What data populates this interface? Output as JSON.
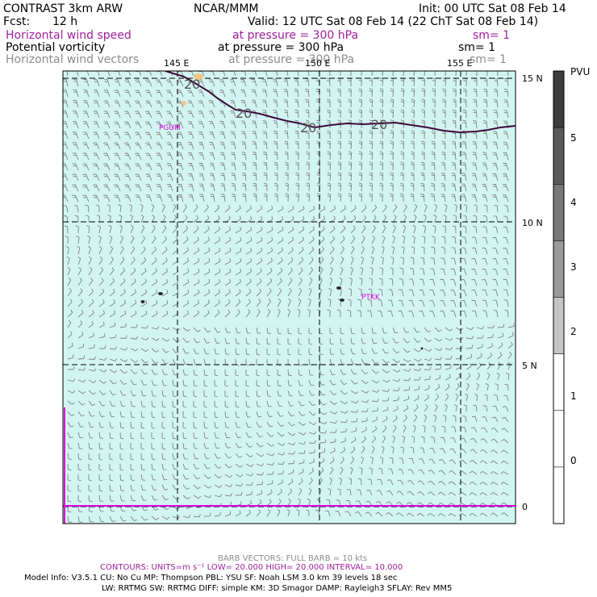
{
  "header": {
    "left_title": "CONTRAST  3km ARW",
    "center_title": "NCAR/MMM",
    "init": "Init: 00 UTC Sat 08 Feb 14",
    "fcst_label": "Fcst:",
    "fcst_value": "12 h",
    "valid": "Valid: 12 UTC Sat 08 Feb 14 (22 ChT Sat 08 Feb 14)"
  },
  "fields": [
    {
      "name": "Horizontal wind speed",
      "level": "at pressure =  300 hPa",
      "smooth": "sm= 1",
      "color": "#a0209f"
    },
    {
      "name": "Potential vorticity",
      "level": "at pressure =  300 hPa",
      "smooth": "sm= 1",
      "color": "#000000"
    },
    {
      "name": "Horizontal wind vectors",
      "level": "at pressure =  300 hPa",
      "smooth": "sm= 1",
      "color": "#8c8c8c"
    }
  ],
  "map": {
    "lon_labels": [
      "145 E",
      "150 E",
      "155 E"
    ],
    "lat_labels": [
      "15 N",
      "10 N",
      "5 N",
      "0"
    ],
    "stations": [
      "PGUM",
      "PTKK"
    ],
    "contour_labels": [
      "20",
      "20",
      "20",
      "20"
    ],
    "background_color": "#d2f5f2"
  },
  "colorbar": {
    "unit": "PVU",
    "tick_labels": [
      "5",
      "4",
      "3",
      "2",
      "1",
      "0"
    ],
    "fill_colors": [
      "#3c3c3c",
      "#5a5a5a",
      "#787878",
      "#9a9a9a",
      "#c4c4c4",
      "#ffffff",
      "#ffffff",
      "#ffffff"
    ]
  },
  "footer": {
    "barb_note": "BARB VECTORS:  FULL BARB = 10 kts",
    "contours": "CONTOURS:  UNITS=m s⁻¹  LOW=  20.000        HIGH=  20.000        INTERVAL=    10.000",
    "model_info_1": "Model Info: V3.5.1     CU: No Cu     MP: Thompson     PBL: YSU      SF: Noah LSM     3.0 km   39 levels    18 sec",
    "model_info_2": "LW: RRTMG     SW: RRTMG   DIFF: simple KM: 3D Smagor DAMP: Rayleigh3  SFLAY: Rev MM5"
  }
}
